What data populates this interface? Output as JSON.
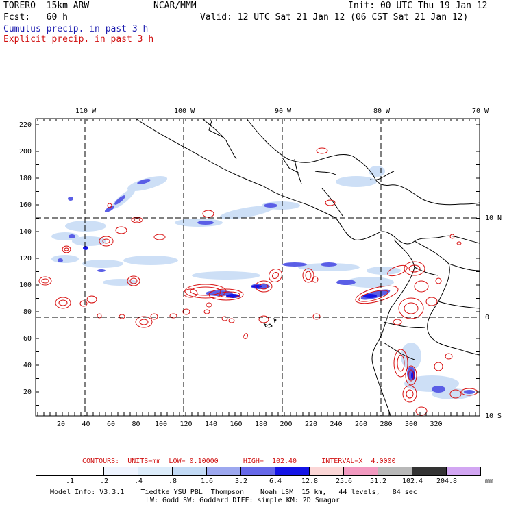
{
  "header": {
    "model": "TORERO  15km ARW",
    "org": "NCAR/MMM",
    "init": "Init: 00 UTC Thu 19 Jan 12",
    "fcst": "Fcst:   60 h",
    "valid": "Valid: 12 UTC Sat 21 Jan 12 (06 CST Sat 21 Jan 12)",
    "field1": "Cumulus precip. in past 3 h",
    "field2": "Explicit precip. in past 3 h"
  },
  "top_ticks": [
    "110 W",
    "100 W",
    "90 W",
    "80 W",
    "70 W"
  ],
  "right_ticks": [
    "10 N",
    "0",
    "10 S"
  ],
  "y_ticks": [
    "220",
    "200",
    "180",
    "160",
    "140",
    "120",
    "100",
    "80",
    "60",
    "40",
    "20"
  ],
  "x_ticks": [
    "20",
    "40",
    "60",
    "80",
    "100",
    "120",
    "140",
    "160",
    "180",
    "200",
    "220",
    "240",
    "260",
    "280",
    "300",
    "320"
  ],
  "contours": {
    "prefix": "CONTOURS:  UNITS=mm  LOW= 0.10000",
    "high": "HIGH=  102.40",
    "interval": "INTERVAL=X  4.0000"
  },
  "colorbar": {
    "labels": [
      ".1",
      ".2",
      ".4",
      ".8",
      "1.6",
      "3.2",
      "6.4",
      "12.8",
      "25.6",
      "51.2",
      "102.4",
      "204.8"
    ],
    "unit": "mm",
    "colors": [
      "#ffffff",
      "#ffffff",
      "#eef4ff",
      "#dcecfa",
      "#c2daf5",
      "#9da8ef",
      "#6668e8",
      "#1414e6",
      "#fbd6d6",
      "#f29ac0",
      "#b8b8b8",
      "#333333",
      "#d2a6f2"
    ]
  },
  "footer": {
    "line1": "Model Info: V3.3.1    Tiedtke YSU PBL  Thompson    Noah LSM  15 km,   44 levels,   84 sec",
    "line2": "LW: Godd SW: Goddard DIFF: simple KM: 2D Smagor"
  },
  "colors": {
    "cumulus": "#2a2ad8",
    "explicit": "#d81010",
    "coast": "#000000"
  }
}
